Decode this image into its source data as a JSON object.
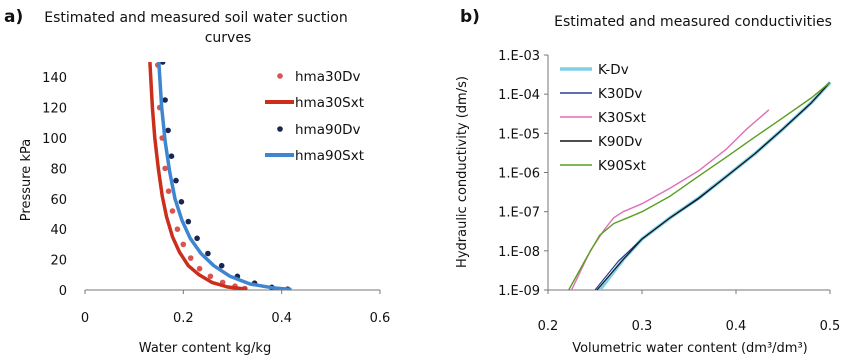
{
  "chart_data": [
    {
      "type": "scatter",
      "panel_label": "a)",
      "title_line1": "Estimated and measured  soil water suction",
      "title_line2": "curves",
      "xlabel": "Water content kg/kg",
      "ylabel": "Pressure kPa",
      "xlim": [
        0,
        0.6
      ],
      "ylim": [
        0,
        150
      ],
      "xticks": [
        0,
        0.2,
        0.4,
        0.6
      ],
      "xtick_labels": [
        "0",
        "0.2",
        "0.4",
        "0.6"
      ],
      "yticks": [
        0,
        20,
        40,
        60,
        80,
        100,
        120,
        140
      ],
      "ytick_labels": [
        "0",
        "20",
        "40",
        "60",
        "80",
        "100",
        "120",
        "140"
      ],
      "grid": false,
      "legend_position": "right",
      "series": [
        {
          "name": "hma30Dv",
          "kind": "dots",
          "color": "#d9534f",
          "x": [
            0.148,
            0.152,
            0.157,
            0.163,
            0.17,
            0.178,
            0.188,
            0.2,
            0.215,
            0.233,
            0.255,
            0.28,
            0.305,
            0.325
          ],
          "y": [
            148,
            120,
            100,
            80,
            65,
            52,
            40,
            30,
            21,
            14,
            9,
            5,
            2.5,
            1
          ]
        },
        {
          "name": "hma30Sxt",
          "kind": "line",
          "color": "#cc2e1c",
          "x": [
            0.132,
            0.137,
            0.142,
            0.149,
            0.157,
            0.166,
            0.178,
            0.192,
            0.21,
            0.232,
            0.258,
            0.29,
            0.33
          ],
          "y": [
            150,
            120,
            100,
            80,
            62,
            48,
            35,
            25,
            16,
            10,
            5,
            2,
            0.5
          ]
        },
        {
          "name": "hma90Dv",
          "kind": "dots",
          "color": "#1a2550",
          "x": [
            0.158,
            0.163,
            0.169,
            0.176,
            0.185,
            0.196,
            0.21,
            0.228,
            0.25,
            0.278,
            0.31,
            0.345,
            0.38,
            0.412
          ],
          "y": [
            150,
            125,
            105,
            88,
            72,
            58,
            45,
            34,
            24,
            16,
            9,
            4.5,
            1.8,
            0.5
          ]
        },
        {
          "name": "hma90Sxt",
          "kind": "line",
          "color": "#3e86cf",
          "x": [
            0.15,
            0.156,
            0.163,
            0.172,
            0.183,
            0.197,
            0.214,
            0.236,
            0.262,
            0.295,
            0.335,
            0.38,
            0.42
          ],
          "y": [
            150,
            120,
            98,
            78,
            60,
            46,
            34,
            24,
            16,
            9,
            4,
            1.5,
            0.3
          ]
        }
      ]
    },
    {
      "type": "line",
      "panel_label": "b)",
      "title": "Estimated and measured  conductivities",
      "xlabel": "Volumetric water content (dm³/dm³)",
      "ylabel": "Hydraulic conductivity (dm/s)",
      "xlim": [
        0.2,
        0.5
      ],
      "ylim_exponent": [
        -9,
        -3
      ],
      "y_scale": "log",
      "xticks": [
        0.2,
        0.3,
        0.4,
        0.5
      ],
      "xtick_labels": [
        "0.2",
        "0.3",
        "0.4",
        "0.5"
      ],
      "ytick_exponents": [
        -3,
        -4,
        -5,
        -6,
        -7,
        -8,
        -9
      ],
      "ytick_labels": [
        "1.E-03",
        "1.E-04",
        "1.E-05",
        "1.E-06",
        "1.E-07",
        "1.E-08",
        "1.E-09"
      ],
      "grid": false,
      "legend_position": "top-left",
      "series": [
        {
          "name": "K-Dv",
          "color": "#7fd0e6",
          "width": 3.5,
          "x": [
            0.255,
            0.28,
            0.3,
            0.33,
            0.36,
            0.39,
            0.42,
            0.45,
            0.48,
            0.5
          ],
          "y": [
            1e-09,
            6e-09,
            2e-08,
            7e-08,
            2.2e-07,
            8e-07,
            3e-06,
            1.3e-05,
            6e-05,
            0.0002
          ]
        },
        {
          "name": "K30Dv",
          "color": "#2b3f8f",
          "width": 1.2,
          "x": [
            0.25,
            0.275,
            0.3,
            0.33,
            0.36,
            0.39,
            0.42,
            0.45,
            0.48,
            0.5
          ],
          "y": [
            1e-09,
            5.5e-09,
            2e-08,
            7e-08,
            2.1e-07,
            8e-07,
            3e-06,
            1.3e-05,
            6e-05,
            0.0002
          ]
        },
        {
          "name": "K30Sxt",
          "color": "#e06fb6",
          "width": 1.4,
          "x": [
            0.225,
            0.245,
            0.26,
            0.27,
            0.28,
            0.3,
            0.33,
            0.36,
            0.39,
            0.41,
            0.435
          ],
          "y": [
            1e-09,
            1e-08,
            3.5e-08,
            7e-08,
            1e-07,
            1.6e-07,
            4e-07,
            1.1e-06,
            4e-06,
            1.2e-05,
            4e-05
          ]
        },
        {
          "name": "K90Dv",
          "color": "#121212",
          "width": 1.2,
          "x": [
            0.252,
            0.28,
            0.3,
            0.33,
            0.36,
            0.39,
            0.42,
            0.45,
            0.48,
            0.5
          ],
          "y": [
            1e-09,
            6e-09,
            2e-08,
            7e-08,
            2.2e-07,
            8e-07,
            3e-06,
            1.3e-05,
            6e-05,
            0.0002
          ]
        },
        {
          "name": "K90Sxt",
          "color": "#5a9e20",
          "width": 1.4,
          "x": [
            0.222,
            0.24,
            0.255,
            0.27,
            0.285,
            0.3,
            0.33,
            0.36,
            0.39,
            0.42,
            0.45,
            0.48,
            0.5
          ],
          "y": [
            1e-09,
            6e-09,
            2.5e-08,
            5e-08,
            7e-08,
            1e-07,
            2.5e-07,
            8e-07,
            2.5e-06,
            8e-06,
            2.5e-05,
            8e-05,
            0.0002
          ]
        }
      ]
    }
  ]
}
